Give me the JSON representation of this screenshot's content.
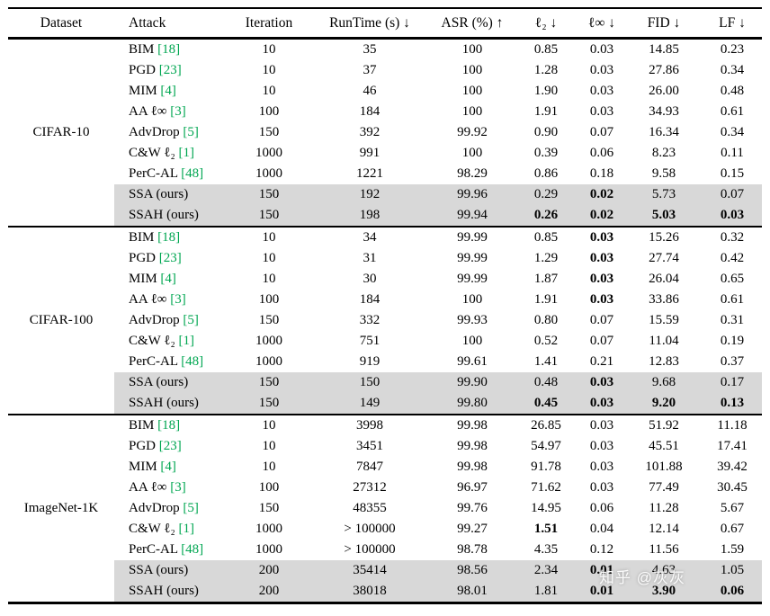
{
  "colors": {
    "citation_green": "#00a651",
    "row_highlight": "#d8d8d8",
    "rule": "#000000"
  },
  "watermark": {
    "text": "知乎 @灰灰"
  },
  "table": {
    "columns": [
      "Dataset",
      "Attack",
      "Iteration",
      "RunTime (s) ↓",
      "ASR (%) ↑",
      "ℓ₂ ↓",
      "ℓ∞ ↓",
      "FID ↓",
      "LF ↓"
    ],
    "groups": [
      {
        "dataset": "CIFAR-10",
        "rows": [
          {
            "attack": "BIM",
            "cite": "[18]",
            "values": [
              "10",
              "35",
              "100",
              "0.85",
              "0.03",
              "14.85",
              "0.23"
            ],
            "bold": [],
            "highlight": false
          },
          {
            "attack": "PGD",
            "cite": "[23]",
            "values": [
              "10",
              "37",
              "100",
              "1.28",
              "0.03",
              "27.86",
              "0.34"
            ],
            "bold": [],
            "highlight": false
          },
          {
            "attack": "MIM",
            "cite": "[4]",
            "values": [
              "10",
              "46",
              "100",
              "1.90",
              "0.03",
              "26.00",
              "0.48"
            ],
            "bold": [],
            "highlight": false
          },
          {
            "attack": "AA ℓ∞",
            "cite": "[3]",
            "values": [
              "100",
              "184",
              "100",
              "1.91",
              "0.03",
              "34.93",
              "0.61"
            ],
            "bold": [],
            "highlight": false
          },
          {
            "attack": "AdvDrop",
            "cite": "[5]",
            "values": [
              "150",
              "392",
              "99.92",
              "0.90",
              "0.07",
              "16.34",
              "0.34"
            ],
            "bold": [],
            "highlight": false
          },
          {
            "attack": "C&W ℓ₂",
            "cite": "[1]",
            "values": [
              "1000",
              "991",
              "100",
              "0.39",
              "0.06",
              "8.23",
              "0.11"
            ],
            "bold": [],
            "highlight": false
          },
          {
            "attack": "PerC-AL",
            "cite": "[48]",
            "values": [
              "1000",
              "1221",
              "98.29",
              "0.86",
              "0.18",
              "9.58",
              "0.15"
            ],
            "bold": [],
            "highlight": false
          },
          {
            "attack": "SSA (ours)",
            "cite": null,
            "values": [
              "150",
              "192",
              "99.96",
              "0.29",
              "0.02",
              "5.73",
              "0.07"
            ],
            "bold": [
              4
            ],
            "highlight": true
          },
          {
            "attack": "SSAH (ours)",
            "cite": null,
            "values": [
              "150",
              "198",
              "99.94",
              "0.26",
              "0.02",
              "5.03",
              "0.03"
            ],
            "bold": [
              3,
              4,
              5,
              6
            ],
            "highlight": true
          }
        ]
      },
      {
        "dataset": "CIFAR-100",
        "rows": [
          {
            "attack": "BIM",
            "cite": "[18]",
            "values": [
              "10",
              "34",
              "99.99",
              "0.85",
              "0.03",
              "15.26",
              "0.32"
            ],
            "bold": [
              4
            ],
            "highlight": false
          },
          {
            "attack": "PGD",
            "cite": "[23]",
            "values": [
              "10",
              "31",
              "99.99",
              "1.29",
              "0.03",
              "27.74",
              "0.42"
            ],
            "bold": [
              4
            ],
            "highlight": false
          },
          {
            "attack": "MIM",
            "cite": "[4]",
            "values": [
              "10",
              "30",
              "99.99",
              "1.87",
              "0.03",
              "26.04",
              "0.65"
            ],
            "bold": [
              4
            ],
            "highlight": false
          },
          {
            "attack": "AA ℓ∞",
            "cite": "[3]",
            "values": [
              "100",
              "184",
              "100",
              "1.91",
              "0.03",
              "33.86",
              "0.61"
            ],
            "bold": [
              4
            ],
            "highlight": false
          },
          {
            "attack": "AdvDrop",
            "cite": "[5]",
            "values": [
              "150",
              "332",
              "99.93",
              "0.80",
              "0.07",
              "15.59",
              "0.31"
            ],
            "bold": [],
            "highlight": false
          },
          {
            "attack": "C&W ℓ₂",
            "cite": "[1]",
            "values": [
              "1000",
              "751",
              "100",
              "0.52",
              "0.07",
              "11.04",
              "0.19"
            ],
            "bold": [],
            "highlight": false
          },
          {
            "attack": "PerC-AL",
            "cite": "[48]",
            "values": [
              "1000",
              "919",
              "99.61",
              "1.41",
              "0.21",
              "12.83",
              "0.37"
            ],
            "bold": [],
            "highlight": false
          },
          {
            "attack": "SSA (ours)",
            "cite": null,
            "values": [
              "150",
              "150",
              "99.90",
              "0.48",
              "0.03",
              "9.68",
              "0.17"
            ],
            "bold": [
              4
            ],
            "highlight": true
          },
          {
            "attack": "SSAH (ours)",
            "cite": null,
            "values": [
              "150",
              "149",
              "99.80",
              "0.45",
              "0.03",
              "9.20",
              "0.13"
            ],
            "bold": [
              3,
              4,
              5,
              6
            ],
            "highlight": true
          }
        ]
      },
      {
        "dataset": "ImageNet-1K",
        "rows": [
          {
            "attack": "BIM",
            "cite": "[18]",
            "values": [
              "10",
              "3998",
              "99.98",
              "26.85",
              "0.03",
              "51.92",
              "11.18"
            ],
            "bold": [],
            "highlight": false
          },
          {
            "attack": "PGD",
            "cite": "[23]",
            "values": [
              "10",
              "3451",
              "99.98",
              "54.97",
              "0.03",
              "45.51",
              "17.41"
            ],
            "bold": [],
            "highlight": false
          },
          {
            "attack": "MIM",
            "cite": "[4]",
            "values": [
              "10",
              "7847",
              "99.98",
              "91.78",
              "0.03",
              "101.88",
              "39.42"
            ],
            "bold": [],
            "highlight": false
          },
          {
            "attack": "AA ℓ∞",
            "cite": "[3]",
            "values": [
              "100",
              "27312",
              "96.97",
              "71.62",
              "0.03",
              "77.49",
              "30.45"
            ],
            "bold": [],
            "highlight": false
          },
          {
            "attack": "AdvDrop",
            "cite": "[5]",
            "values": [
              "150",
              "48355",
              "99.76",
              "14.95",
              "0.06",
              "11.28",
              "5.67"
            ],
            "bold": [],
            "highlight": false
          },
          {
            "attack": "C&W ℓ₂",
            "cite": "[1]",
            "values": [
              "1000",
              "> 100000",
              "99.27",
              "1.51",
              "0.04",
              "12.14",
              "0.67"
            ],
            "bold": [
              3
            ],
            "highlight": false
          },
          {
            "attack": "PerC-AL",
            "cite": "[48]",
            "values": [
              "1000",
              "> 100000",
              "98.78",
              "4.35",
              "0.12",
              "11.56",
              "1.59"
            ],
            "bold": [],
            "highlight": false
          },
          {
            "attack": "SSA (ours)",
            "cite": null,
            "values": [
              "200",
              "35414",
              "98.56",
              "2.34",
              "0.01",
              "4.63",
              "1.05"
            ],
            "bold": [
              4
            ],
            "highlight": true
          },
          {
            "attack": "SSAH (ours)",
            "cite": null,
            "values": [
              "200",
              "38018",
              "98.01",
              "1.81",
              "0.01",
              "3.90",
              "0.06"
            ],
            "bold": [
              4,
              5,
              6
            ],
            "highlight": true
          }
        ]
      }
    ]
  }
}
